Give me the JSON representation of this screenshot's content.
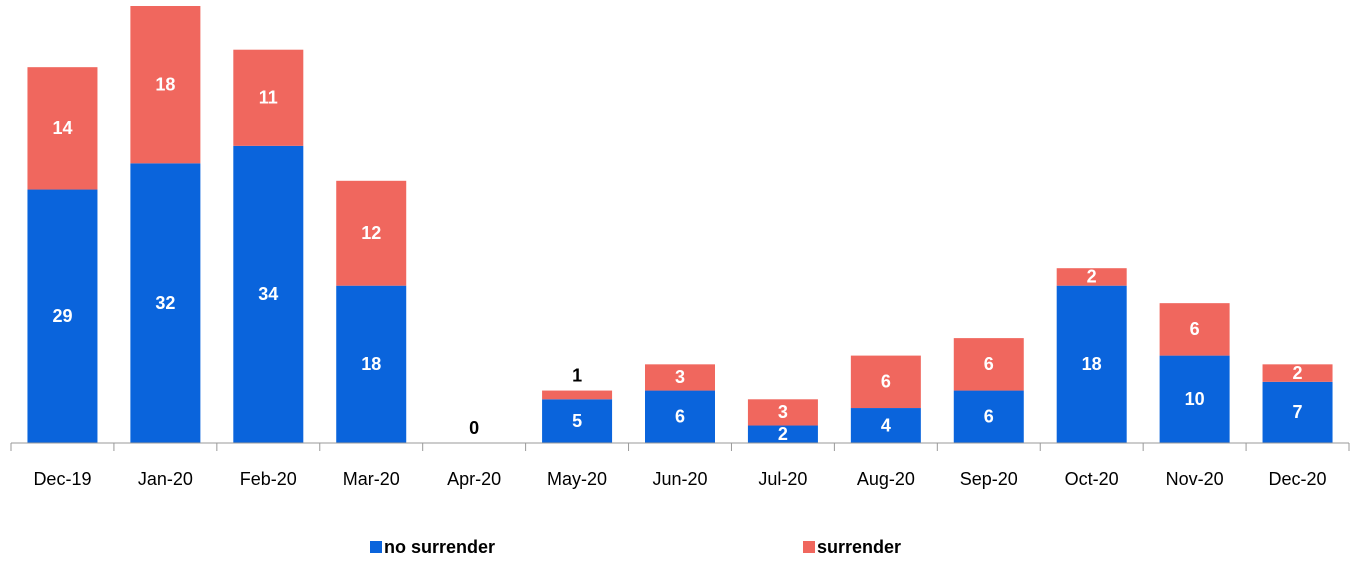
{
  "chart_data": {
    "type": "stacked_bar",
    "categories": [
      "Dec-19",
      "Jan-20",
      "Feb-20",
      "Mar-20",
      "Apr-20",
      "May-20",
      "Jun-20",
      "Jul-20",
      "Aug-20",
      "Sep-20",
      "Oct-20",
      "Nov-20",
      "Dec-20"
    ],
    "series": [
      {
        "name": "no surrender",
        "color": "#0a64dc",
        "values": [
          29,
          32,
          34,
          18,
          0,
          5,
          6,
          2,
          4,
          6,
          18,
          10,
          7
        ]
      },
      {
        "name": "surrender",
        "color": "#f0675e",
        "values": [
          14,
          18,
          11,
          12,
          0,
          1,
          3,
          3,
          6,
          6,
          2,
          6,
          2
        ]
      }
    ]
  }
}
